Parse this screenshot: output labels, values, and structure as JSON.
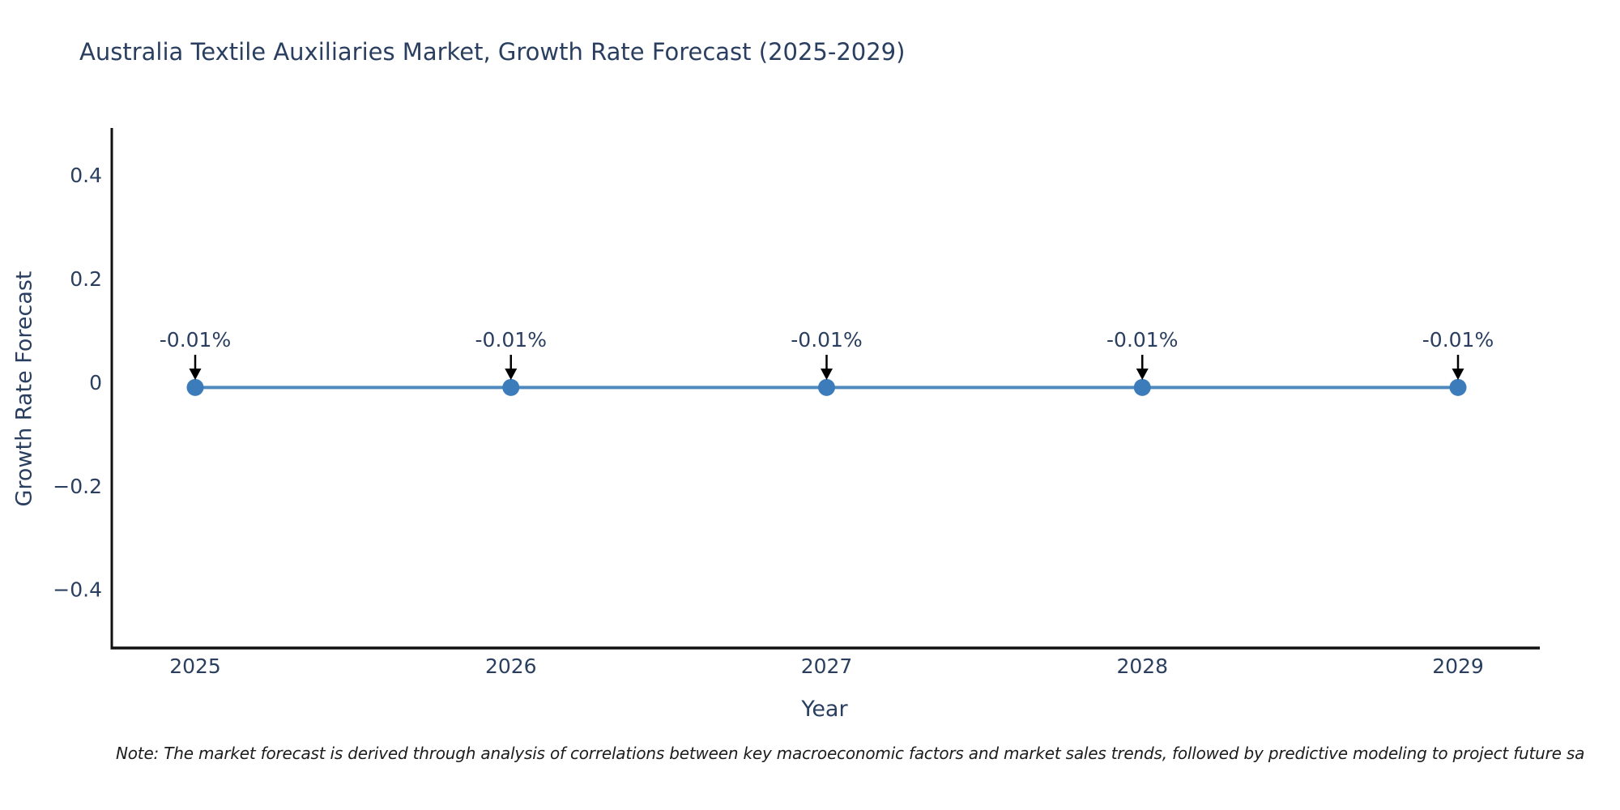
{
  "title": "Australia Textile Auxiliaries Market, Growth Rate Forecast (2025-2029)",
  "note": "Note: The market forecast is derived through analysis of correlations between key macroeconomic factors and market sales trends, followed by predictive modeling to project future sa",
  "colors": {
    "background": "#ffffff",
    "text": "#2a3f5f",
    "axis": "#111111",
    "line": "#4e8ac0",
    "marker": "#3d7cba",
    "annotation_arrow": "#000000",
    "note_text": "#1c1c1c"
  },
  "chart_data": {
    "type": "line",
    "title": "Australia Textile Auxiliaries Market, Growth Rate Forecast (2025-2029)",
    "xlabel": "Year",
    "ylabel": "Growth Rate Forecast",
    "x": [
      2025,
      2026,
      2027,
      2028,
      2029
    ],
    "values": [
      -0.01,
      -0.01,
      -0.01,
      -0.01,
      -0.01
    ],
    "annotations": [
      "-0.01%",
      "-0.01%",
      "-0.01%",
      "-0.01%",
      "-0.01%"
    ],
    "xtick_labels": [
      "2025",
      "2026",
      "2027",
      "2028",
      "2029"
    ],
    "yticks": [
      0.4,
      0.2,
      0,
      -0.2,
      -0.4
    ],
    "ytick_labels": [
      "0.4",
      "0.2",
      "0",
      "−0.2",
      "−0.4"
    ],
    "ylim": [
      -0.513,
      0.491
    ],
    "grid": false,
    "legend": "none",
    "marker_shape": "circle",
    "units": "%"
  }
}
